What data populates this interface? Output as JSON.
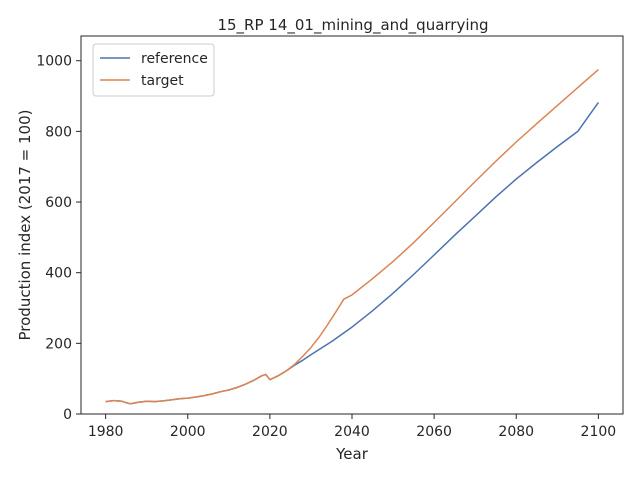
{
  "chart_data": {
    "type": "line",
    "title": "15_RP 14_01_mining_and_quarrying",
    "xlabel": "Year",
    "ylabel": "Production index (2017 = 100)",
    "xlim": [
      1974,
      2106
    ],
    "ylim": [
      0,
      1070
    ],
    "xticks": [
      1980,
      2000,
      2020,
      2040,
      2060,
      2080,
      2100
    ],
    "yticks": [
      0,
      200,
      400,
      600,
      800,
      1000
    ],
    "grid": false,
    "legend_position": "top-left",
    "series": [
      {
        "name": "reference",
        "color": "#4c72b0",
        "points": [
          [
            1980,
            35
          ],
          [
            1982,
            38
          ],
          [
            1984,
            36
          ],
          [
            1985,
            32
          ],
          [
            1986,
            29
          ],
          [
            1988,
            33
          ],
          [
            1990,
            36
          ],
          [
            1992,
            35
          ],
          [
            1994,
            37
          ],
          [
            1996,
            40
          ],
          [
            1998,
            43
          ],
          [
            2000,
            45
          ],
          [
            2002,
            48
          ],
          [
            2004,
            52
          ],
          [
            2006,
            57
          ],
          [
            2008,
            63
          ],
          [
            2010,
            68
          ],
          [
            2012,
            75
          ],
          [
            2014,
            84
          ],
          [
            2016,
            95
          ],
          [
            2018,
            108
          ],
          [
            2019,
            112
          ],
          [
            2020,
            97
          ],
          [
            2022,
            108
          ],
          [
            2024,
            122
          ],
          [
            2026,
            138
          ],
          [
            2028,
            152
          ],
          [
            2030,
            168
          ],
          [
            2035,
            205
          ],
          [
            2040,
            246
          ],
          [
            2045,
            292
          ],
          [
            2050,
            342
          ],
          [
            2055,
            395
          ],
          [
            2060,
            450
          ],
          [
            2065,
            506
          ],
          [
            2070,
            560
          ],
          [
            2075,
            614
          ],
          [
            2080,
            665
          ],
          [
            2085,
            712
          ],
          [
            2090,
            757
          ],
          [
            2095,
            800
          ],
          [
            2100,
            882
          ]
        ]
      },
      {
        "name": "target",
        "color": "#dd8452",
        "points": [
          [
            1980,
            35
          ],
          [
            1982,
            38
          ],
          [
            1984,
            36
          ],
          [
            1985,
            32
          ],
          [
            1986,
            29
          ],
          [
            1988,
            33
          ],
          [
            1990,
            36
          ],
          [
            1992,
            35
          ],
          [
            1994,
            37
          ],
          [
            1996,
            40
          ],
          [
            1998,
            43
          ],
          [
            2000,
            45
          ],
          [
            2002,
            48
          ],
          [
            2004,
            52
          ],
          [
            2006,
            57
          ],
          [
            2008,
            63
          ],
          [
            2010,
            68
          ],
          [
            2012,
            75
          ],
          [
            2014,
            84
          ],
          [
            2016,
            95
          ],
          [
            2018,
            108
          ],
          [
            2019,
            112
          ],
          [
            2020,
            97
          ],
          [
            2022,
            108
          ],
          [
            2024,
            122
          ],
          [
            2026,
            140
          ],
          [
            2028,
            163
          ],
          [
            2030,
            188
          ],
          [
            2032,
            218
          ],
          [
            2034,
            252
          ],
          [
            2036,
            288
          ],
          [
            2038,
            325
          ],
          [
            2040,
            337
          ],
          [
            2045,
            383
          ],
          [
            2050,
            432
          ],
          [
            2055,
            485
          ],
          [
            2060,
            542
          ],
          [
            2065,
            600
          ],
          [
            2070,
            658
          ],
          [
            2075,
            715
          ],
          [
            2080,
            770
          ],
          [
            2085,
            822
          ],
          [
            2090,
            873
          ],
          [
            2095,
            924
          ],
          [
            2100,
            975
          ]
        ]
      }
    ]
  }
}
